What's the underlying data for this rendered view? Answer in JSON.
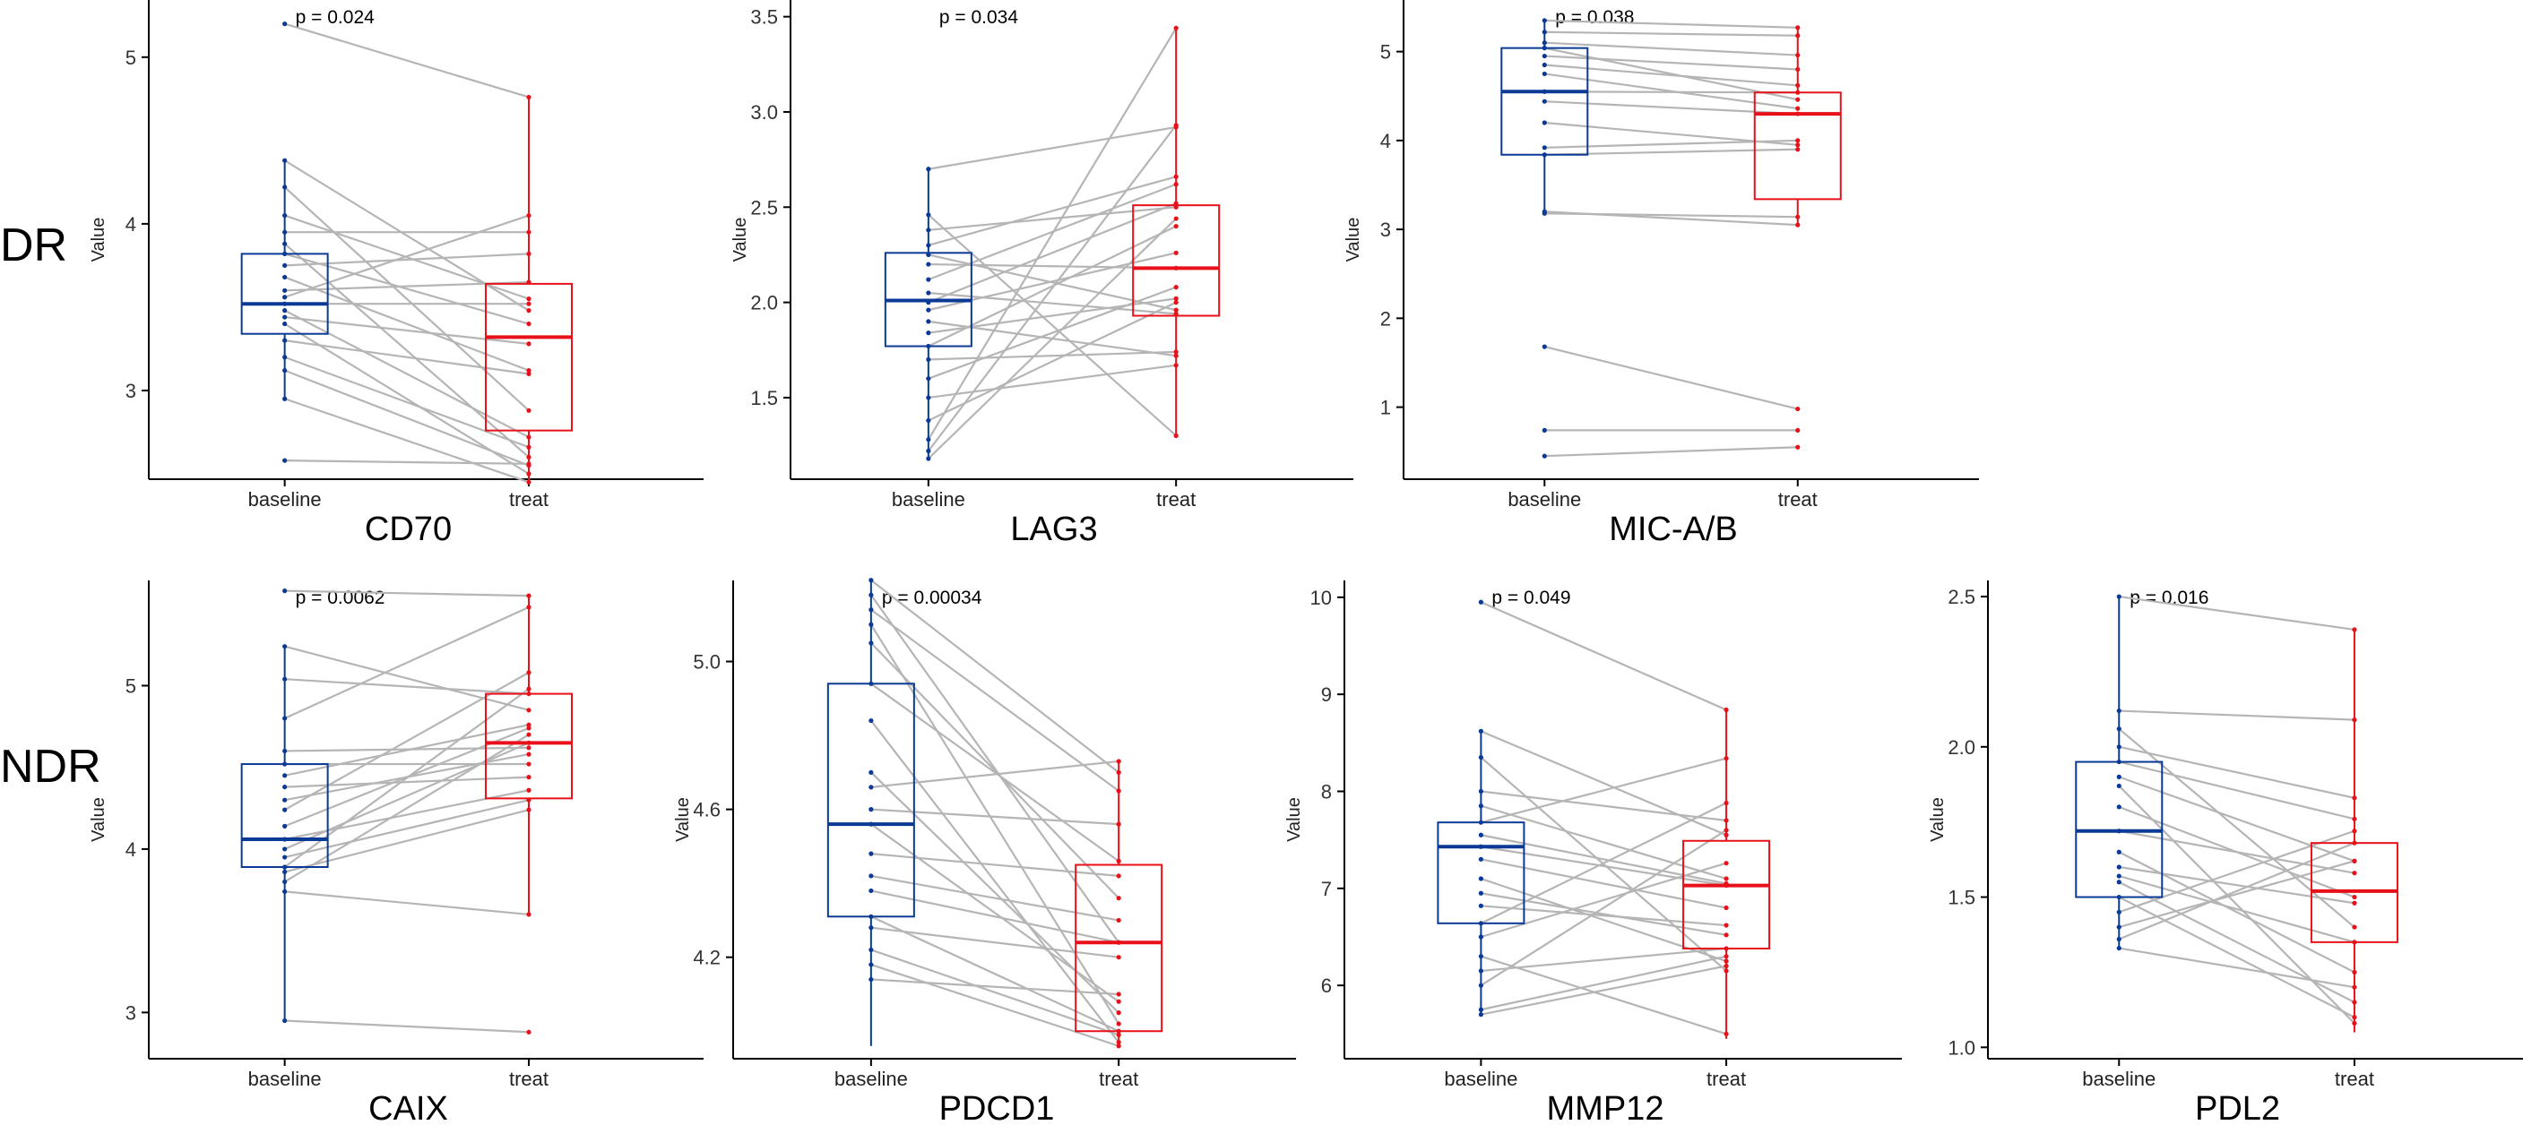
{
  "row_labels": [
    "DR",
    "NDR"
  ],
  "colors": {
    "baseline": "#0b3a96",
    "treat": "#e8111a",
    "pair_line": "#b5b5b5",
    "axis": "#000000"
  },
  "chart_data": [
    {
      "type": "box-paired",
      "row": "DR",
      "title": "CD70",
      "ylabel": "Value",
      "categories": [
        "baseline",
        "treat"
      ],
      "pvalue_label": "p = 0.024",
      "ylim": [
        2.5,
        5.3
      ],
      "yticks": [
        3,
        4,
        5
      ],
      "yticklabels": [
        "3",
        "4",
        "5"
      ],
      "box_stats": [
        {
          "group": "baseline",
          "q1": 3.34,
          "median": 3.52,
          "q3": 3.82,
          "whisker_low": 2.95,
          "whisker_high": 4.38
        },
        {
          "group": "treat",
          "q1": 2.76,
          "median": 3.32,
          "q3": 3.64,
          "whisker_low": 2.45,
          "whisker_high": 4.76
        }
      ],
      "pairs": [
        [
          5.2,
          4.76
        ],
        [
          4.38,
          3.48
        ],
        [
          4.22,
          2.88
        ],
        [
          4.05,
          3.55
        ],
        [
          3.95,
          3.95
        ],
        [
          3.88,
          2.6
        ],
        [
          3.82,
          3.4
        ],
        [
          3.75,
          3.82
        ],
        [
          3.68,
          3.12
        ],
        [
          3.6,
          3.65
        ],
        [
          3.56,
          4.05
        ],
        [
          3.52,
          3.52
        ],
        [
          3.48,
          2.72
        ],
        [
          3.44,
          3.28
        ],
        [
          3.4,
          2.5
        ],
        [
          3.3,
          3.1
        ],
        [
          3.2,
          2.66
        ],
        [
          3.12,
          2.55
        ],
        [
          2.95,
          2.45
        ],
        [
          2.58,
          2.56
        ]
      ]
    },
    {
      "type": "box-paired",
      "row": "DR",
      "title": "LAG3",
      "ylabel": "Value",
      "categories": [
        "baseline",
        "treat"
      ],
      "pvalue_label": "p = 0.034",
      "ylim": [
        1.1,
        3.55
      ],
      "yticks": [
        1.5,
        2.0,
        2.5,
        3.0,
        3.5
      ],
      "yticklabels": [
        "1.5",
        "2.0",
        "2.5",
        "3.0",
        "3.5"
      ],
      "box_stats": [
        {
          "group": "baseline",
          "q1": 1.77,
          "median": 2.01,
          "q3": 2.26,
          "whisker_low": 1.18,
          "whisker_high": 2.7
        },
        {
          "group": "treat",
          "q1": 1.93,
          "median": 2.18,
          "q3": 2.51,
          "whisker_low": 1.3,
          "whisker_high": 3.44
        }
      ],
      "pairs": [
        [
          2.7,
          2.92
        ],
        [
          2.46,
          1.3
        ],
        [
          2.38,
          2.5
        ],
        [
          2.3,
          2.66
        ],
        [
          2.25,
          1.96
        ],
        [
          2.2,
          2.18
        ],
        [
          2.12,
          2.62
        ],
        [
          2.05,
          1.94
        ],
        [
          2.0,
          2.52
        ],
        [
          1.96,
          2.26
        ],
        [
          1.9,
          1.72
        ],
        [
          1.84,
          2.02
        ],
        [
          1.77,
          2.4
        ],
        [
          1.7,
          1.74
        ],
        [
          1.6,
          2.08
        ],
        [
          1.5,
          1.67
        ],
        [
          1.38,
          2.0
        ],
        [
          1.28,
          3.44
        ],
        [
          1.22,
          2.93
        ],
        [
          1.18,
          2.44
        ]
      ]
    },
    {
      "type": "box-paired",
      "row": "DR",
      "title": "MIC-A/B",
      "ylabel": "Value",
      "categories": [
        "baseline",
        "treat"
      ],
      "pvalue_label": "p = 0.038",
      "ylim": [
        0.25,
        5.5
      ],
      "yticks": [
        1,
        2,
        3,
        4,
        5
      ],
      "yticklabels": [
        "1",
        "2",
        "3",
        "4",
        "5"
      ],
      "box_stats": [
        {
          "group": "baseline",
          "q1": 3.84,
          "median": 4.55,
          "q3": 5.04,
          "whisker_low": 3.18,
          "whisker_high": 5.35
        },
        {
          "group": "treat",
          "q1": 3.34,
          "median": 4.3,
          "q3": 4.54,
          "whisker_low": 3.05,
          "whisker_high": 5.27
        }
      ],
      "pairs": [
        [
          5.35,
          5.27
        ],
        [
          5.22,
          5.18
        ],
        [
          5.1,
          4.96
        ],
        [
          5.04,
          4.46
        ],
        [
          4.95,
          4.8
        ],
        [
          4.85,
          4.62
        ],
        [
          4.75,
          4.36
        ],
        [
          4.55,
          4.54
        ],
        [
          4.44,
          4.3
        ],
        [
          4.2,
          3.95
        ],
        [
          3.92,
          4.0
        ],
        [
          3.84,
          3.9
        ],
        [
          3.2,
          3.05
        ],
        [
          3.18,
          3.14
        ],
        [
          1.68,
          0.98
        ],
        [
          0.74,
          0.74
        ],
        [
          0.45,
          0.55
        ]
      ]
    },
    {
      "type": "box-paired",
      "row": "NDR",
      "title": "CAIX",
      "ylabel": "Value",
      "categories": [
        "baseline",
        "treat"
      ],
      "pvalue_label": "p = 0.0062",
      "ylim": [
        2.75,
        5.6
      ],
      "yticks": [
        3,
        4,
        5
      ],
      "yticklabels": [
        "3",
        "4",
        "5"
      ],
      "box_stats": [
        {
          "group": "baseline",
          "q1": 3.89,
          "median": 4.06,
          "q3": 4.52,
          "whisker_low": 2.95,
          "whisker_high": 5.24
        },
        {
          "group": "treat",
          "q1": 4.31,
          "median": 4.65,
          "q3": 4.95,
          "whisker_low": 3.6,
          "whisker_high": 5.56
        }
      ],
      "pairs": [
        [
          5.58,
          5.55
        ],
        [
          5.24,
          4.85
        ],
        [
          5.04,
          4.95
        ],
        [
          4.8,
          5.48
        ],
        [
          4.6,
          4.62
        ],
        [
          4.52,
          4.52
        ],
        [
          4.45,
          4.76
        ],
        [
          4.38,
          4.44
        ],
        [
          4.3,
          4.58
        ],
        [
          4.24,
          5.08
        ],
        [
          4.14,
          4.74
        ],
        [
          4.06,
          4.36
        ],
        [
          4.0,
          4.65
        ],
        [
          3.95,
          4.3
        ],
        [
          3.89,
          4.98
        ],
        [
          3.86,
          4.24
        ],
        [
          3.8,
          4.7
        ],
        [
          3.74,
          3.6
        ],
        [
          2.95,
          2.88
        ]
      ]
    },
    {
      "type": "box-paired",
      "row": "NDR",
      "title": "PDCD1",
      "ylabel": "Value",
      "categories": [
        "baseline",
        "treat"
      ],
      "pvalue_label": "p = 0.00034",
      "ylim": [
        3.94,
        5.2
      ],
      "yticks": [
        4.2,
        4.6,
        5.0
      ],
      "yticklabels": [
        "4.2",
        "4.6",
        "5.0"
      ],
      "box_stats": [
        {
          "group": "baseline",
          "q1": 4.31,
          "median": 4.56,
          "q3": 4.94,
          "whisker_low": 3.96,
          "whisker_high": 5.22
        },
        {
          "group": "treat",
          "q1": 4.0,
          "median": 4.24,
          "q3": 4.45,
          "whisker_low": 3.96,
          "whisker_high": 4.73
        }
      ],
      "pairs": [
        [
          5.22,
          4.7
        ],
        [
          5.18,
          4.24
        ],
        [
          5.14,
          4.65
        ],
        [
          5.1,
          4.02
        ],
        [
          5.05,
          4.36
        ],
        [
          4.94,
          4.46
        ],
        [
          4.84,
          3.97
        ],
        [
          4.7,
          4.05
        ],
        [
          4.66,
          4.73
        ],
        [
          4.6,
          4.56
        ],
        [
          4.56,
          4.08
        ],
        [
          4.48,
          4.42
        ],
        [
          4.42,
          4.3
        ],
        [
          4.38,
          4.24
        ],
        [
          4.31,
          4.0
        ],
        [
          4.28,
          4.2
        ],
        [
          4.22,
          3.99
        ],
        [
          4.18,
          3.96
        ],
        [
          4.14,
          4.1
        ]
      ]
    },
    {
      "type": "box-paired",
      "row": "NDR",
      "title": "MMP12",
      "ylabel": "Value",
      "categories": [
        "baseline",
        "treat"
      ],
      "pvalue_label": "p = 0.049",
      "ylim": [
        5.3,
        10.1
      ],
      "yticks": [
        6,
        7,
        8,
        9,
        10
      ],
      "yticklabels": [
        "6",
        "7",
        "8",
        "9",
        "10"
      ],
      "box_stats": [
        {
          "group": "baseline",
          "q1": 6.64,
          "median": 7.43,
          "q3": 7.68,
          "whisker_low": 5.7,
          "whisker_high": 8.62
        },
        {
          "group": "treat",
          "q1": 6.38,
          "median": 7.03,
          "q3": 7.49,
          "whisker_low": 5.45,
          "whisker_high": 8.84
        }
      ],
      "pairs": [
        [
          9.95,
          8.84
        ],
        [
          8.62,
          7.55
        ],
        [
          8.35,
          6.15
        ],
        [
          8.0,
          7.7
        ],
        [
          7.85,
          7.1
        ],
        [
          7.68,
          8.34
        ],
        [
          7.55,
          7.05
        ],
        [
          7.43,
          7.03
        ],
        [
          7.3,
          6.8
        ],
        [
          7.1,
          6.25
        ],
        [
          6.95,
          6.52
        ],
        [
          6.82,
          6.62
        ],
        [
          6.64,
          7.88
        ],
        [
          6.5,
          7.26
        ],
        [
          6.3,
          5.5
        ],
        [
          6.15,
          6.38
        ],
        [
          6.0,
          7.6
        ],
        [
          5.75,
          6.3
        ],
        [
          5.7,
          6.2
        ]
      ]
    },
    {
      "type": "box-paired",
      "row": "NDR",
      "title": "PDL2",
      "ylabel": "Value",
      "categories": [
        "baseline",
        "treat"
      ],
      "pvalue_label": "p = 0.016",
      "ylim": [
        0.98,
        2.53
      ],
      "yticks": [
        1.0,
        1.5,
        2.0,
        2.5
      ],
      "yticklabels": [
        "1.0",
        "1.5",
        "2.0",
        "2.5"
      ],
      "box_stats": [
        {
          "group": "baseline",
          "q1": 1.5,
          "median": 1.72,
          "q3": 1.95,
          "whisker_low": 1.33,
          "whisker_high": 2.5
        },
        {
          "group": "treat",
          "q1": 1.35,
          "median": 1.52,
          "q3": 1.68,
          "whisker_low": 1.05,
          "whisker_high": 2.39
        }
      ],
      "pairs": [
        [
          2.5,
          2.39
        ],
        [
          2.12,
          2.09
        ],
        [
          2.06,
          1.4
        ],
        [
          2.0,
          1.83
        ],
        [
          1.95,
          1.76
        ],
        [
          1.9,
          1.62
        ],
        [
          1.87,
          1.08
        ],
        [
          1.8,
          1.5
        ],
        [
          1.72,
          1.58
        ],
        [
          1.65,
          1.25
        ],
        [
          1.6,
          1.48
        ],
        [
          1.57,
          1.35
        ],
        [
          1.55,
          1.15
        ],
        [
          1.5,
          1.1
        ],
        [
          1.45,
          1.72
        ],
        [
          1.4,
          1.62
        ],
        [
          1.36,
          1.68
        ],
        [
          1.33,
          1.2
        ]
      ]
    }
  ]
}
